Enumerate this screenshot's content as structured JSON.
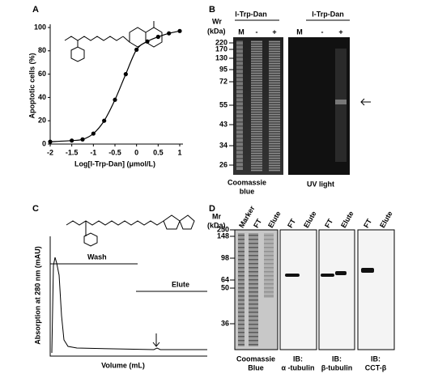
{
  "panels": {
    "a": "A",
    "b": "B",
    "c": "C",
    "d": "D"
  },
  "chart_data": {
    "type": "line",
    "ylabel": "Apoptotic cells (%)",
    "xlabel": "Log[l-Trp-Dan] (μmol/L)",
    "x": [
      -2,
      -1.5,
      -1.25,
      -1,
      -0.75,
      -0.5,
      -0.25,
      0,
      0.25,
      0.5,
      0.75,
      1
    ],
    "series": [
      {
        "color": "#000000",
        "values": [
          2,
          3,
          4,
          9,
          20,
          38,
          60,
          81,
          88,
          92,
          95,
          97
        ]
      }
    ],
    "xlim": [
      -2,
      1
    ],
    "ylim": [
      0,
      100
    ],
    "xticks": [
      -2,
      -1.5,
      -1,
      -0.5,
      0,
      0.5,
      1
    ],
    "yticks": [
      0,
      20,
      40,
      60,
      80,
      100
    ]
  },
  "gel_b": {
    "header_left": "l-Trp-Dan",
    "header_right": "l-Trp-Dan",
    "wr": "Wr",
    "kda": "(kDa)",
    "lanes": [
      "M",
      "-",
      "+",
      "M",
      "-",
      "+"
    ],
    "markers": [
      "220",
      "170",
      "130",
      "95",
      "72",
      "55",
      "43",
      "34",
      "26"
    ],
    "caption_left": [
      "Coomassie",
      "blue"
    ],
    "caption_right": "UV light"
  },
  "chromatogram": {
    "ylabel": "Absorption at 280 nm (mAU)",
    "xlabel": "Volume (mL)",
    "wash": "Wash",
    "elute": "Elute"
  },
  "gel_d": {
    "mr": "Mr",
    "kda": "(kDa)",
    "lanes": [
      "Marker",
      "FT",
      "Elute",
      "FT",
      "Elute",
      "FT",
      "Elute",
      "FT",
      "Elute"
    ],
    "markers": [
      "250",
      "148",
      "98",
      "64",
      "50",
      "36"
    ],
    "captions": [
      [
        "Coomassie",
        "Blue"
      ],
      [
        "IB:",
        "α -tubulin"
      ],
      [
        "IB:",
        "β-tubulin"
      ],
      [
        "IB:",
        "CCT-β"
      ]
    ]
  }
}
